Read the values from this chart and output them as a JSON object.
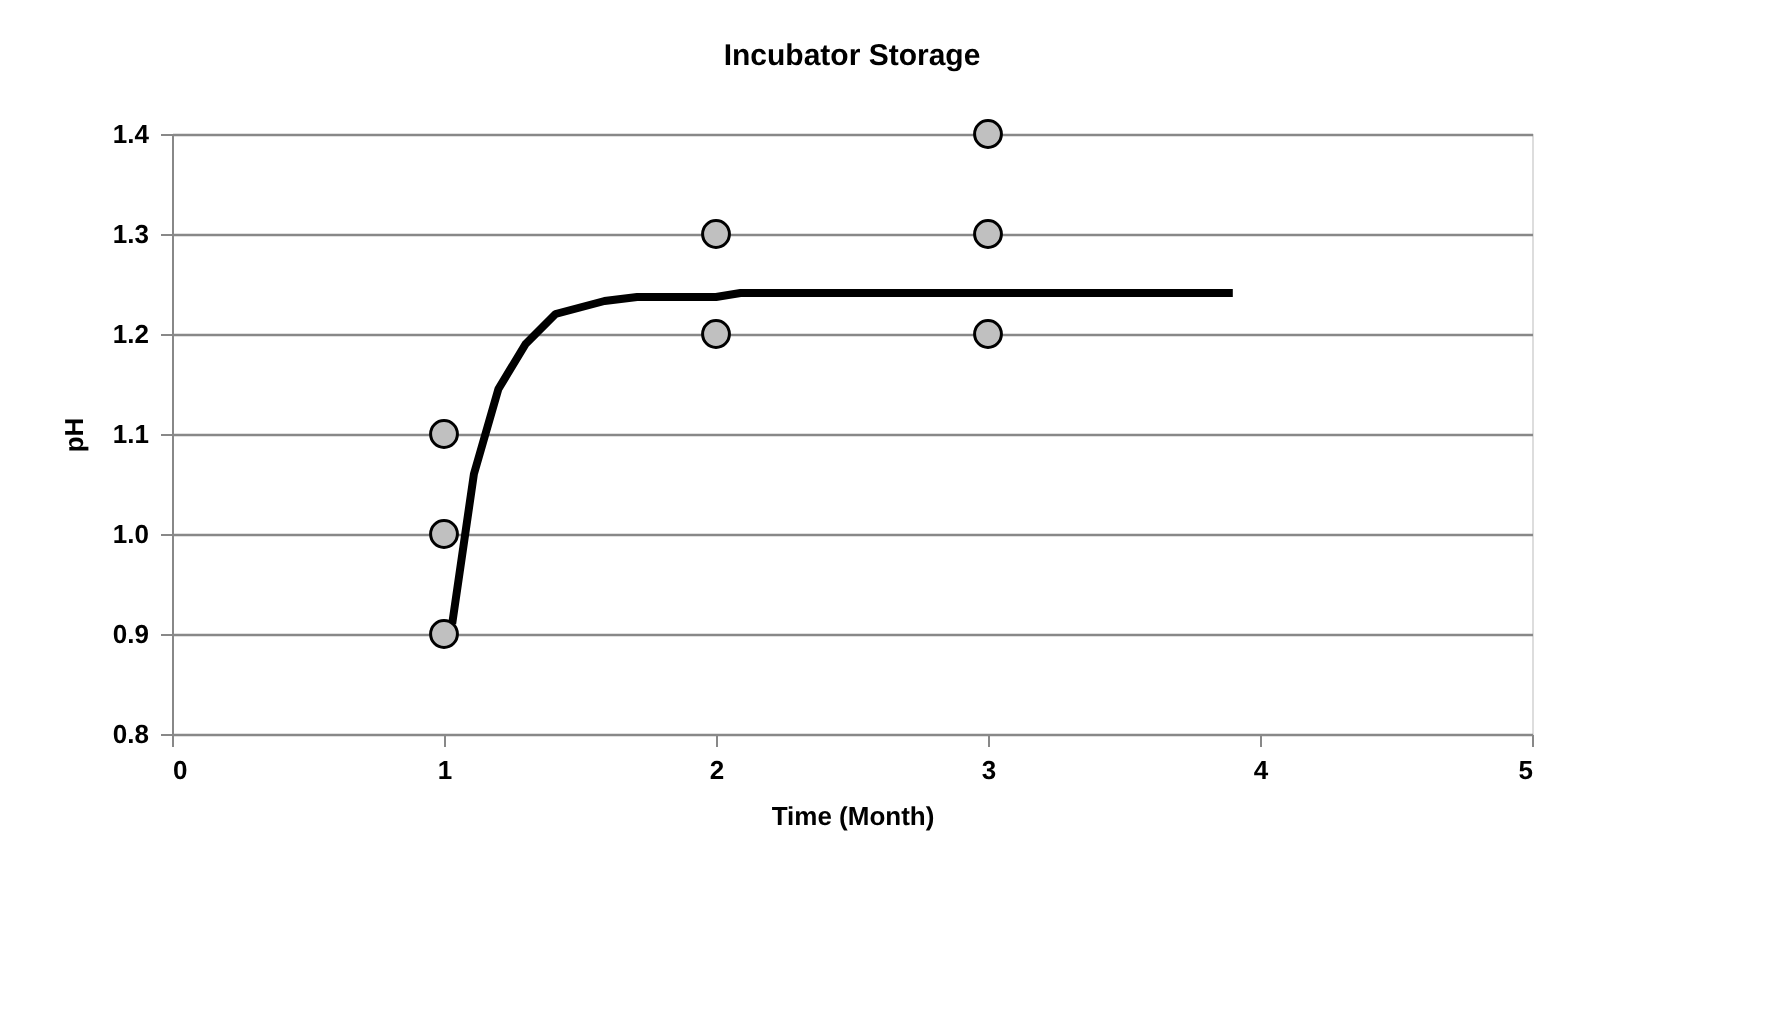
{
  "chart_data": {
    "type": "scatter",
    "title": "Incubator Storage",
    "xlabel": "Time (Month)",
    "ylabel": "pH",
    "xlim": [
      0,
      5
    ],
    "xticks": [
      0,
      1,
      2,
      3,
      4,
      5
    ],
    "ylim": [
      0.8,
      1.4
    ],
    "yticks": [
      {
        "value": 0.8,
        "label": "0.8"
      },
      {
        "value": 0.9,
        "label": "0.9"
      },
      {
        "value": 1.0,
        "label": "1.0"
      },
      {
        "value": 1.1,
        "label": "1.1"
      },
      {
        "value": 1.2,
        "label": "1.2"
      },
      {
        "value": 1.3,
        "label": "1.3"
      },
      {
        "value": 1.4,
        "label": "1.4"
      }
    ],
    "grid": "y",
    "series": [
      {
        "color": "#c0c0c0",
        "marker": "circle",
        "x": [
          1,
          1,
          1,
          2,
          2,
          3,
          3,
          3
        ],
        "values": [
          0.9,
          1.0,
          1.1,
          1.2,
          1.3,
          1.2,
          1.3,
          1.4
        ]
      },
      {
        "type": "line",
        "color": "#000000",
        "marker": "none",
        "line_style": "solid",
        "x": [
          1.03,
          1.11,
          1.2,
          1.3,
          1.41,
          1.59,
          1.71,
          2.0,
          2.09,
          3.9
        ],
        "values": [
          0.91,
          1.06,
          1.145,
          1.19,
          1.22,
          1.233,
          1.237,
          1.237,
          1.241,
          1.241
        ]
      }
    ]
  }
}
